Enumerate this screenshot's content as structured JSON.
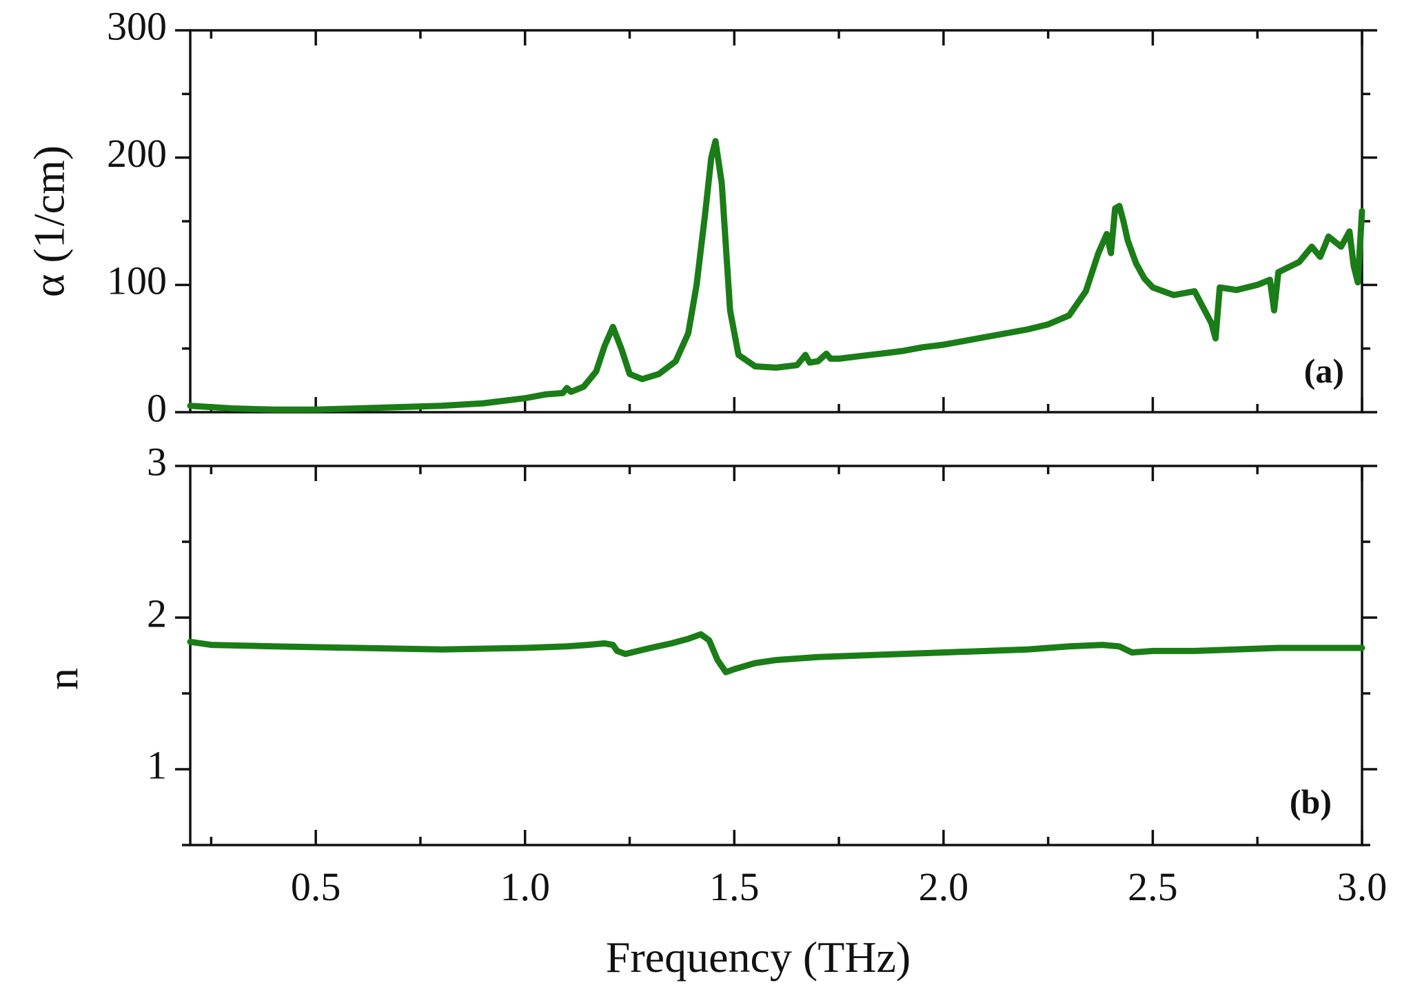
{
  "chart_data": [
    {
      "type": "line",
      "panel_label": "(a)",
      "xlabel": "Frequency (THz)",
      "ylabel": "α (1/cm)",
      "xlim": [
        0.2,
        3.0
      ],
      "ylim": [
        0,
        300
      ],
      "yticks": [
        0,
        100,
        200,
        300
      ],
      "y_tick_labels": [
        "0",
        "100",
        "200",
        "300"
      ],
      "xticks": [
        0.5,
        1.0,
        1.5,
        2.0,
        2.5,
        3.0
      ],
      "x_tick_labels": [],
      "line_color": "#1a7d17",
      "series": [
        {
          "name": "alpha",
          "x": [
            0.2,
            0.3,
            0.4,
            0.5,
            0.6,
            0.7,
            0.8,
            0.9,
            1.0,
            1.05,
            1.09,
            1.1,
            1.11,
            1.14,
            1.17,
            1.19,
            1.21,
            1.23,
            1.25,
            1.28,
            1.32,
            1.36,
            1.39,
            1.41,
            1.43,
            1.445,
            1.455,
            1.47,
            1.49,
            1.51,
            1.55,
            1.6,
            1.65,
            1.67,
            1.68,
            1.7,
            1.72,
            1.73,
            1.75,
            1.8,
            1.85,
            1.9,
            1.95,
            2.0,
            2.05,
            2.1,
            2.15,
            2.2,
            2.25,
            2.3,
            2.34,
            2.37,
            2.39,
            2.4,
            2.41,
            2.42,
            2.43,
            2.44,
            2.46,
            2.48,
            2.5,
            2.55,
            2.6,
            2.64,
            2.65,
            2.66,
            2.7,
            2.75,
            2.78,
            2.79,
            2.8,
            2.85,
            2.88,
            2.9,
            2.92,
            2.95,
            2.97,
            2.98,
            2.99,
            3.0
          ],
          "y": [
            5,
            3,
            2,
            2,
            3,
            4,
            5,
            7,
            11,
            14,
            15,
            19,
            16,
            20,
            32,
            52,
            67,
            50,
            30,
            26,
            30,
            40,
            62,
            100,
            155,
            200,
            213,
            180,
            80,
            45,
            36,
            35,
            37,
            45,
            39,
            40,
            46,
            42,
            42,
            44,
            46,
            48,
            51,
            53,
            56,
            59,
            62,
            65,
            69,
            76,
            95,
            125,
            140,
            125,
            160,
            162,
            150,
            135,
            117,
            105,
            98,
            92,
            95,
            70,
            58,
            98,
            96,
            100,
            104,
            80,
            110,
            118,
            130,
            122,
            138,
            130,
            142,
            115,
            102,
            158
          ]
        }
      ]
    },
    {
      "type": "line",
      "panel_label": "(b)",
      "xlabel": "Frequency (THz)",
      "ylabel": "n",
      "xlim": [
        0.2,
        3.0
      ],
      "ylim": [
        0.5,
        3
      ],
      "yticks": [
        1,
        2,
        3
      ],
      "y_tick_labels": [
        "1",
        "2",
        "3"
      ],
      "xticks": [
        0.5,
        1.0,
        1.5,
        2.0,
        2.5,
        3.0
      ],
      "x_tick_labels": [
        "0.5",
        "1.0",
        "1.5",
        "2.0",
        "2.5",
        "3.0"
      ],
      "line_color": "#1a7d17",
      "series": [
        {
          "name": "n",
          "x": [
            0.2,
            0.25,
            0.4,
            0.6,
            0.8,
            1.0,
            1.1,
            1.15,
            1.19,
            1.21,
            1.22,
            1.24,
            1.3,
            1.35,
            1.39,
            1.42,
            1.44,
            1.46,
            1.48,
            1.5,
            1.55,
            1.6,
            1.7,
            1.8,
            2.0,
            2.2,
            2.3,
            2.38,
            2.42,
            2.45,
            2.5,
            2.6,
            2.8,
            3.0
          ],
          "y": [
            1.84,
            1.82,
            1.81,
            1.8,
            1.79,
            1.8,
            1.81,
            1.82,
            1.83,
            1.82,
            1.78,
            1.76,
            1.8,
            1.83,
            1.86,
            1.89,
            1.85,
            1.72,
            1.64,
            1.66,
            1.7,
            1.72,
            1.74,
            1.75,
            1.77,
            1.79,
            1.81,
            1.82,
            1.81,
            1.77,
            1.78,
            1.78,
            1.8,
            1.8
          ]
        }
      ]
    }
  ]
}
